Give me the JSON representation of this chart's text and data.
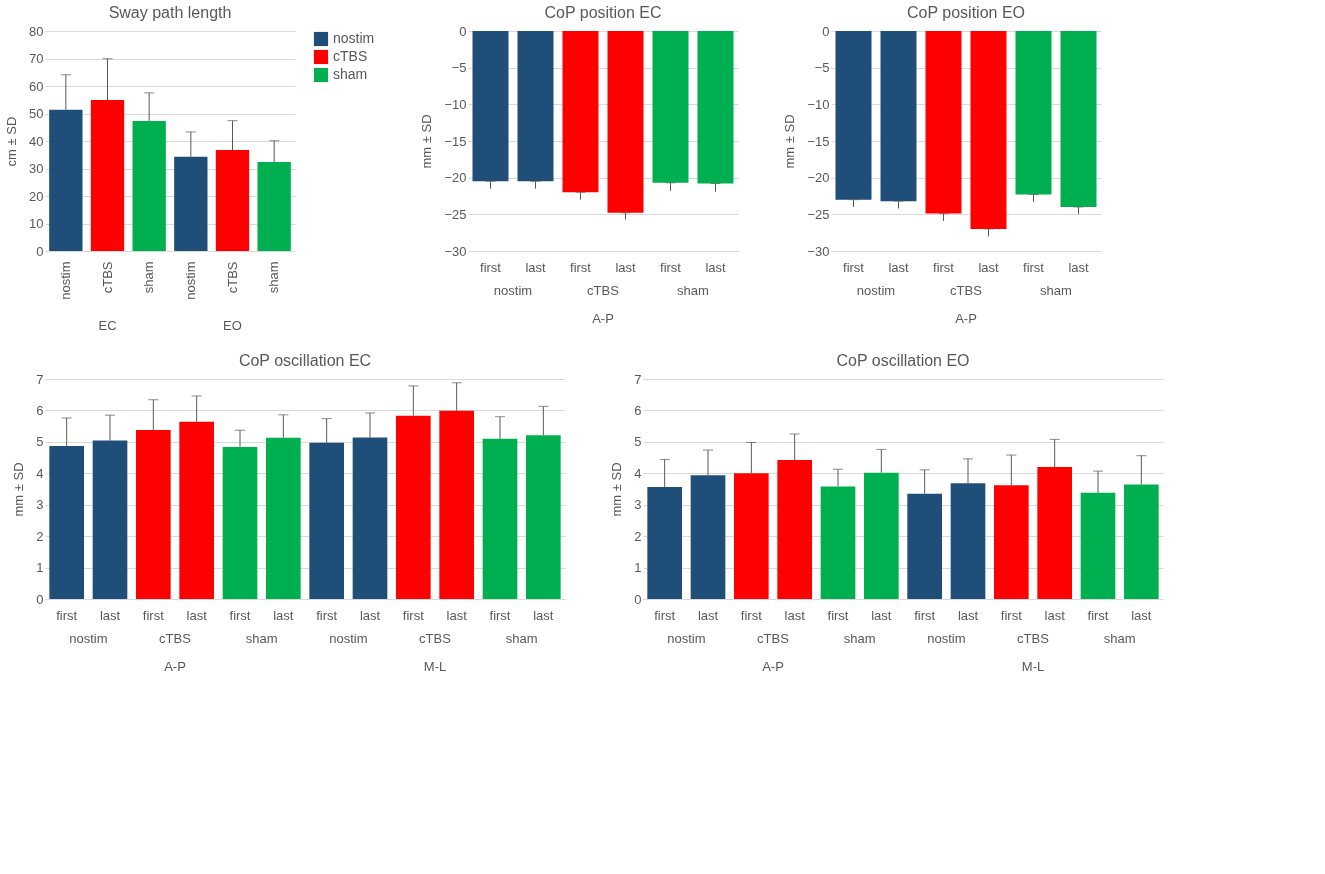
{
  "chart_data": [
    {
      "type": "bar",
      "title": "Sway path length",
      "ylabel": "cm ± SD",
      "categories": [
        "nostim",
        "cTBS",
        "sham",
        "nostim",
        "cTBS",
        "sham"
      ],
      "annotations": [
        "EC",
        "EO"
      ],
      "series": [
        {
          "name": "nostim",
          "color": "#1f4e79",
          "values": [
            51.4,
            null,
            null,
            34.3,
            null,
            null
          ],
          "errors": [
            [
              51.4,
              64.1
            ],
            null,
            null,
            [
              34.3,
              43.3
            ],
            null,
            null
          ]
        },
        {
          "name": "cTBS",
          "color": "#ff0000",
          "values": [
            null,
            54.9,
            null,
            null,
            36.7,
            null
          ],
          "errors": [
            null,
            [
              54.9,
              69.9
            ],
            null,
            null,
            [
              36.7,
              47.4
            ],
            null
          ]
        },
        {
          "name": "sham",
          "color": "#00b050",
          "values": [
            null,
            null,
            47.3,
            null,
            null,
            32.4
          ],
          "errors": [
            null,
            null,
            [
              47.3,
              57.5
            ],
            null,
            null,
            [
              32.4,
              40.1
            ]
          ]
        }
      ],
      "ylim": [
        0,
        80
      ],
      "yticks": [
        0,
        10,
        20,
        30,
        40,
        50,
        60,
        70,
        80
      ],
      "grid": "y",
      "legend": "right"
    },
    {
      "type": "bar",
      "title": "CoP position EC",
      "ylabel": "mm ± SD",
      "categories": [
        "first",
        "last",
        "first",
        "last",
        "first",
        "last"
      ],
      "annotations": [
        "nostim",
        "cTBS",
        "sham",
        "A-P"
      ],
      "values": [
        -20.5,
        -20.5,
        -22.0,
        -24.8,
        -20.7,
        -20.8
      ],
      "colors": [
        "#1f4e79",
        "#1f4e79",
        "#ff0000",
        "#ff0000",
        "#00b050",
        "#00b050"
      ],
      "errors": [
        [
          -21.5,
          -20.5
        ],
        [
          -21.5,
          -20.5
        ],
        [
          -23.0,
          -22.0
        ],
        [
          -25.7,
          -24.8
        ],
        [
          -21.8,
          -20.7
        ],
        [
          -21.9,
          -20.8
        ]
      ],
      "ylim": [
        -30,
        0
      ],
      "yticks": [
        -30,
        -25,
        -20,
        -15,
        -10,
        -5,
        0
      ],
      "grid": "y"
    },
    {
      "type": "bar",
      "title": "CoP position EO",
      "ylabel": "mm ± SD",
      "categories": [
        "first",
        "last",
        "first",
        "last",
        "first",
        "last"
      ],
      "annotations": [
        "nostim",
        "cTBS",
        "sham",
        "A-P"
      ],
      "values": [
        -23.0,
        -23.2,
        -24.9,
        -27.0,
        -22.3,
        -24.0
      ],
      "colors": [
        "#1f4e79",
        "#1f4e79",
        "#ff0000",
        "#ff0000",
        "#00b050",
        "#00b050"
      ],
      "errors": [
        [
          -24.0,
          -23.0
        ],
        [
          -24.2,
          -23.2
        ],
        [
          -25.9,
          -24.9
        ],
        [
          -28.0,
          -27.0
        ],
        [
          -23.3,
          -22.3
        ],
        [
          -25.0,
          -24.0
        ]
      ],
      "ylim": [
        -30,
        0
      ],
      "yticks": [
        -30,
        -25,
        -20,
        -15,
        -10,
        -5,
        0
      ],
      "grid": "y"
    },
    {
      "type": "bar",
      "title": "CoP oscillation EC",
      "ylabel": "mm ± SD",
      "categories": [
        "first",
        "last",
        "first",
        "last",
        "first",
        "last",
        "first",
        "last",
        "first",
        "last",
        "first",
        "last"
      ],
      "annotations": [
        "nostim",
        "cTBS",
        "sham",
        "nostim",
        "cTBS",
        "sham",
        "A-P",
        "M-L"
      ],
      "values": [
        4.87,
        5.04,
        5.38,
        5.64,
        4.84,
        5.13,
        4.97,
        5.14,
        5.83,
        5.99,
        5.1,
        5.21
      ],
      "colors": [
        "#1f4e79",
        "#1f4e79",
        "#ff0000",
        "#ff0000",
        "#00b050",
        "#00b050",
        "#1f4e79",
        "#1f4e79",
        "#ff0000",
        "#ff0000",
        "#00b050",
        "#00b050"
      ],
      "errors": [
        [
          4.87,
          5.76
        ],
        [
          5.04,
          5.85
        ],
        [
          5.38,
          6.34
        ],
        [
          5.64,
          6.46
        ],
        [
          4.84,
          5.37
        ],
        [
          5.13,
          5.86
        ],
        [
          4.97,
          5.74
        ],
        [
          5.14,
          5.92
        ],
        [
          5.83,
          6.78
        ],
        [
          5.99,
          6.88
        ],
        [
          5.1,
          5.8
        ],
        [
          5.21,
          6.13
        ]
      ],
      "ylim": [
        0,
        7
      ],
      "yticks": [
        0,
        1,
        2,
        3,
        4,
        5,
        6,
        7
      ],
      "grid": "y"
    },
    {
      "type": "bar",
      "title": "CoP oscillation EO",
      "ylabel": "mm ± SD",
      "categories": [
        "first",
        "last",
        "first",
        "last",
        "first",
        "last",
        "first",
        "last",
        "first",
        "last",
        "first",
        "last"
      ],
      "annotations": [
        "nostim",
        "cTBS",
        "sham",
        "nostim",
        "cTBS",
        "sham",
        "A-P",
        "M-L"
      ],
      "values": [
        3.56,
        3.94,
        4.0,
        4.42,
        3.58,
        4.02,
        3.35,
        3.68,
        3.62,
        4.2,
        3.38,
        3.64
      ],
      "colors": [
        "#1f4e79",
        "#1f4e79",
        "#ff0000",
        "#ff0000",
        "#00b050",
        "#00b050",
        "#1f4e79",
        "#1f4e79",
        "#ff0000",
        "#ff0000",
        "#00b050",
        "#00b050"
      ],
      "errors": [
        [
          3.56,
          4.44
        ],
        [
          3.94,
          4.74
        ],
        [
          4.0,
          4.98
        ],
        [
          4.42,
          5.25
        ],
        [
          3.58,
          4.13
        ],
        [
          4.02,
          4.76
        ],
        [
          3.35,
          4.11
        ],
        [
          3.68,
          4.46
        ],
        [
          3.62,
          4.58
        ],
        [
          4.2,
          5.08
        ],
        [
          3.38,
          4.07
        ],
        [
          3.64,
          4.56
        ]
      ],
      "ylim": [
        0,
        7
      ],
      "yticks": [
        0,
        1,
        2,
        3,
        4,
        5,
        6,
        7
      ],
      "grid": "y"
    }
  ]
}
